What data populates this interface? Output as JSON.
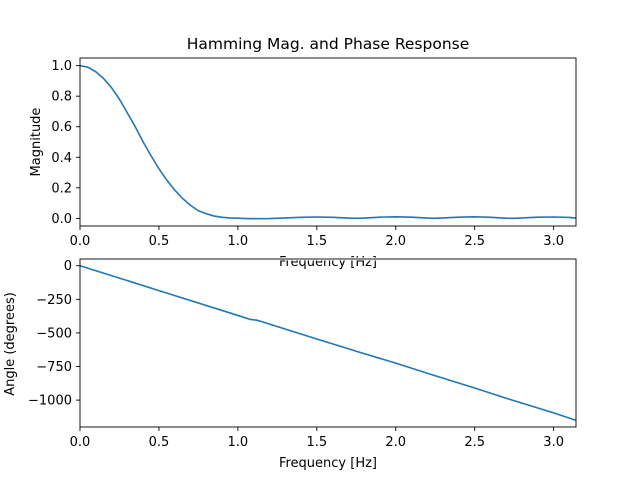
{
  "chart_data": [
    {
      "type": "line",
      "title": "Hamming Mag. and Phase Response",
      "xlabel": "Frequency [Hz]",
      "ylabel": "Magnitude",
      "xlim": [
        0,
        3.1416
      ],
      "ylim": [
        -0.05,
        1.05
      ],
      "xticks": [
        0.0,
        0.5,
        1.0,
        1.5,
        2.0,
        2.5,
        3.0
      ],
      "xtick_labels": [
        "0.0",
        "0.5",
        "1.0",
        "1.5",
        "2.0",
        "2.5",
        "3.0"
      ],
      "yticks": [
        0.0,
        0.2,
        0.4,
        0.6,
        0.8,
        1.0
      ],
      "ytick_labels": [
        "0.0",
        "0.2",
        "0.4",
        "0.6",
        "0.8",
        "1.0"
      ],
      "grid": false,
      "series": [
        {
          "color": "#1f77b4",
          "x": [
            0.0,
            0.05,
            0.1,
            0.15,
            0.2,
            0.25,
            0.3,
            0.35,
            0.4,
            0.45,
            0.5,
            0.55,
            0.6,
            0.65,
            0.7,
            0.75,
            0.8,
            0.85,
            0.9,
            0.95,
            1.0,
            1.05,
            1.1,
            1.2,
            1.3,
            1.4,
            1.5,
            1.6,
            1.7,
            1.75,
            1.8,
            1.9,
            2.0,
            2.1,
            2.2,
            2.24,
            2.3,
            2.4,
            2.5,
            2.6,
            2.7,
            2.75,
            2.8,
            2.9,
            3.0,
            3.1,
            3.14
          ],
          "y": [
            1.0,
            0.99,
            0.96,
            0.915,
            0.855,
            0.78,
            0.69,
            0.6,
            0.5,
            0.41,
            0.325,
            0.25,
            0.185,
            0.13,
            0.085,
            0.05,
            0.03,
            0.015,
            0.007,
            0.003,
            0.001,
            -0.001,
            -0.002,
            -0.001,
            0.003,
            0.007,
            0.009,
            0.007,
            0.002,
            0.0,
            0.002,
            0.008,
            0.01,
            0.008,
            0.002,
            0.0,
            0.003,
            0.008,
            0.01,
            0.007,
            0.001,
            0.0,
            0.003,
            0.008,
            0.009,
            0.006,
            0.002
          ]
        }
      ]
    },
    {
      "type": "line",
      "title": "",
      "xlabel": "Frequency [Hz]",
      "ylabel": "Angle (degrees)",
      "xlim": [
        0,
        3.1416
      ],
      "ylim": [
        -1200,
        50
      ],
      "xticks": [
        0.0,
        0.5,
        1.0,
        1.5,
        2.0,
        2.5,
        3.0
      ],
      "xtick_labels": [
        "0.0",
        "0.5",
        "1.0",
        "1.5",
        "2.0",
        "2.5",
        "3.0"
      ],
      "yticks": [
        0,
        -250,
        -500,
        -750,
        -1000
      ],
      "ytick_labels": [
        "0",
        "−250",
        "−500",
        "−750",
        "−1000"
      ],
      "grid": false,
      "series": [
        {
          "color": "#1f77b4",
          "x": [
            0.0,
            0.5,
            1.0,
            1.08,
            1.12,
            1.5,
            1.72,
            1.76,
            2.0,
            2.2,
            2.24,
            2.5,
            2.67,
            2.71,
            3.0,
            3.14
          ],
          "y": [
            0,
            -185,
            -370,
            -400,
            -405,
            -545,
            -625,
            -640,
            -725,
            -800,
            -815,
            -910,
            -975,
            -990,
            -1095,
            -1150
          ]
        }
      ]
    }
  ]
}
